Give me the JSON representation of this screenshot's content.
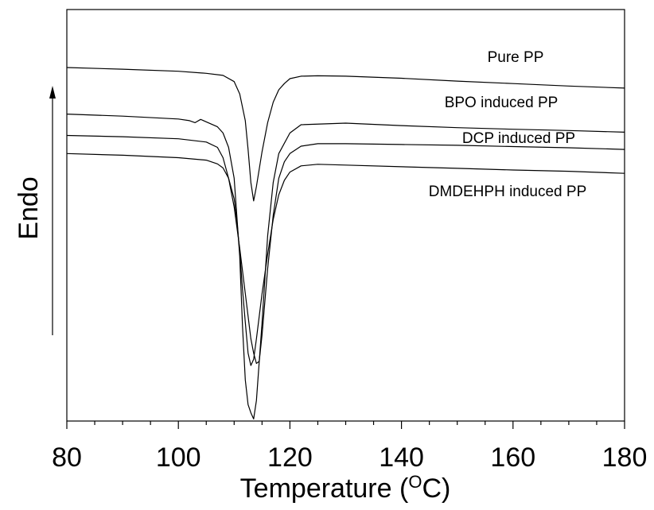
{
  "chart_data": {
    "type": "line",
    "title": "",
    "xlabel": "Temperature (",
    "xlabel_sup": "O",
    "xlabel_end": "C)",
    "ylabel": "Endo",
    "xlim": [
      80,
      180
    ],
    "ylim": [
      0,
      100
    ],
    "grid": false,
    "y_tick_labels_shown": false,
    "xticks": [
      80,
      100,
      120,
      140,
      160,
      180
    ],
    "x_minor_step": 5,
    "series": [
      {
        "name": "Pure PP",
        "x": [
          80,
          90,
          100,
          105,
          108,
          110,
          111,
          112,
          112.5,
          113,
          113.5,
          114,
          115,
          116,
          117,
          118,
          119,
          120,
          122,
          125,
          130,
          140,
          150,
          160,
          170,
          180
        ],
        "y": [
          85.9,
          85.5,
          85.0,
          84.5,
          84.0,
          82.5,
          79.5,
          73.0,
          66.0,
          58.0,
          53.5,
          57.0,
          65.5,
          72.5,
          77.5,
          80.5,
          82.0,
          83.2,
          83.8,
          83.9,
          83.8,
          83.3,
          82.6,
          82.0,
          81.4,
          80.9
        ]
      },
      {
        "name": "BPO induced PP",
        "x": [
          80,
          90,
          100,
          102,
          103,
          104,
          105,
          107,
          108,
          109,
          110,
          111,
          111.5,
          112,
          112.5,
          113,
          113.5,
          114,
          115,
          116,
          117,
          118,
          120,
          122,
          130,
          140,
          150,
          160,
          170,
          180
        ],
        "y": [
          74.6,
          74.1,
          73.4,
          73.0,
          72.5,
          73.3,
          72.7,
          71.5,
          70.0,
          66.5,
          59.0,
          40.0,
          23.0,
          10.0,
          4.0,
          2.0,
          0.5,
          5.0,
          24.0,
          45.0,
          58.0,
          65.0,
          70.0,
          72.0,
          72.4,
          71.8,
          71.3,
          70.9,
          70.6,
          70.2
        ]
      },
      {
        "name": "DCP induced PP",
        "x": [
          80,
          90,
          100,
          105,
          107,
          108,
          109,
          110,
          111,
          112,
          112.5,
          113,
          113.5,
          114,
          114.5,
          115,
          116,
          117,
          118,
          119,
          120,
          122,
          125,
          130,
          140,
          150,
          160,
          170,
          180
        ],
        "y": [
          69.4,
          69.1,
          68.6,
          67.8,
          66.5,
          64.0,
          59.0,
          52.0,
          42.0,
          31.0,
          25.5,
          20.0,
          16.5,
          14.0,
          14.5,
          21.0,
          37.0,
          50.0,
          59.0,
          63.0,
          65.0,
          66.8,
          67.4,
          67.4,
          67.2,
          67.0,
          66.7,
          66.4,
          66.0
        ]
      },
      {
        "name": "DMDEHPH induced PP",
        "x": [
          80,
          90,
          100,
          105,
          107,
          108,
          109,
          110,
          110.5,
          111,
          111.5,
          112,
          112.5,
          113,
          113.5,
          114,
          115,
          116,
          117,
          118,
          119,
          120,
          122,
          125,
          130,
          140,
          150,
          160,
          170,
          180
        ],
        "y": [
          65.0,
          64.6,
          64.0,
          63.4,
          62.5,
          61.5,
          59.0,
          54.0,
          48.5,
          41.0,
          32.0,
          24.0,
          16.5,
          13.5,
          15.0,
          20.0,
          31.0,
          40.5,
          49.0,
          55.0,
          58.5,
          60.5,
          62.0,
          62.4,
          62.2,
          61.8,
          61.4,
          61.0,
          60.7,
          60.2
        ]
      }
    ]
  }
}
